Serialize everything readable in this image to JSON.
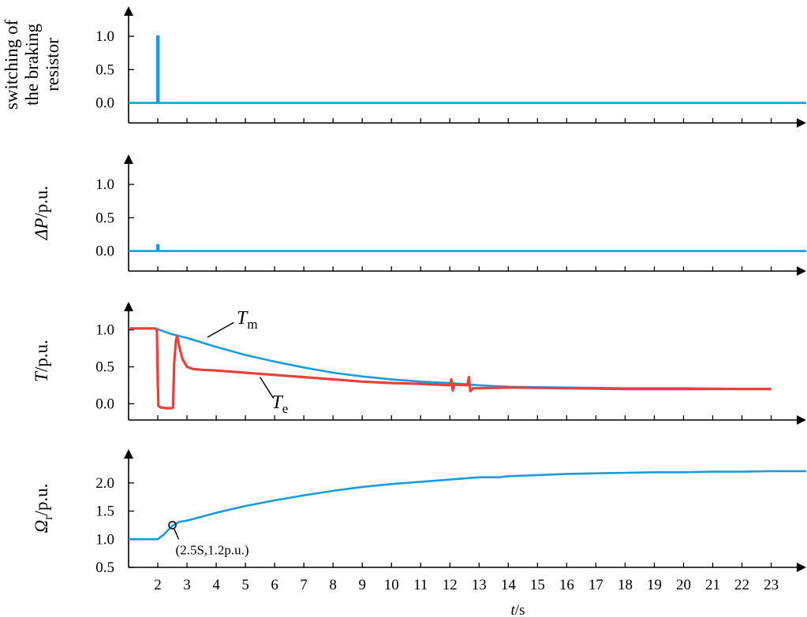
{
  "colors": {
    "blue": "#1a9be0",
    "red": "#e8403c",
    "axis": "#000000"
  },
  "chart_data": [
    {
      "type": "line",
      "title": "",
      "ylabel_lines": [
        "switching of",
        "the braking",
        "resistor"
      ],
      "yticks": [
        "1.0",
        "0.5",
        "0.0"
      ],
      "ylim": [
        -0.3,
        1.45
      ],
      "xlim": [
        1,
        24.2
      ],
      "series": [
        {
          "color": "blue",
          "points": [
            [
              1,
              0
            ],
            [
              1.98,
              0
            ],
            [
              1.98,
              1.0
            ],
            [
              2.03,
              1.0
            ],
            [
              2.03,
              0
            ],
            [
              24.2,
              0
            ]
          ]
        }
      ]
    },
    {
      "type": "line",
      "title": "",
      "ylabel_main": "ΔP",
      "ylabel_rest": "/p.u.",
      "yticks": [
        "1.0",
        "0.5",
        "0.0"
      ],
      "ylim": [
        -0.3,
        1.45
      ],
      "xlim": [
        1,
        24.2
      ],
      "series": [
        {
          "color": "blue",
          "points": [
            [
              1,
              0
            ],
            [
              1.98,
              0
            ],
            [
              1.98,
              0.09
            ],
            [
              2.03,
              0.09
            ],
            [
              2.03,
              0
            ],
            [
              24.2,
              0
            ]
          ]
        }
      ]
    },
    {
      "type": "line",
      "title": "",
      "ylabel_main": "T",
      "ylabel_rest": "/p.u.",
      "yticks": [
        "1.0",
        "0.5",
        "0.0"
      ],
      "ylim": [
        -0.22,
        1.38
      ],
      "xlim": [
        1,
        24.2
      ],
      "series": [
        {
          "name_main": "T",
          "name_sub": "m",
          "color": "blue",
          "points": [
            [
              1,
              1.02
            ],
            [
              1.9,
              1.02
            ],
            [
              2.0,
              1.01
            ],
            [
              2.2,
              0.98
            ],
            [
              2.5,
              0.94
            ],
            [
              3,
              0.89
            ],
            [
              3.5,
              0.83
            ],
            [
              4,
              0.77
            ],
            [
              5,
              0.66
            ],
            [
              6,
              0.57
            ],
            [
              7,
              0.49
            ],
            [
              8,
              0.42
            ],
            [
              9,
              0.37
            ],
            [
              10,
              0.33
            ],
            [
              11,
              0.3
            ],
            [
              12,
              0.28
            ],
            [
              13,
              0.25
            ],
            [
              14,
              0.23
            ],
            [
              16,
              0.22
            ],
            [
              18,
              0.21
            ],
            [
              20,
              0.21
            ],
            [
              23,
              0.2
            ]
          ]
        },
        {
          "name_main": "T",
          "name_sub": "e",
          "color": "red",
          "points": [
            [
              1,
              1.02
            ],
            [
              1.92,
              1.02
            ],
            [
              1.97,
              1.0
            ],
            [
              2.0,
              0.3
            ],
            [
              2.02,
              -0.03
            ],
            [
              2.1,
              -0.05
            ],
            [
              2.3,
              -0.06
            ],
            [
              2.5,
              -0.06
            ],
            [
              2.52,
              -0.05
            ],
            [
              2.56,
              0.55
            ],
            [
              2.62,
              0.85
            ],
            [
              2.66,
              0.92
            ],
            [
              2.72,
              0.8
            ],
            [
              2.85,
              0.6
            ],
            [
              3.0,
              0.5
            ],
            [
              3.2,
              0.47
            ],
            [
              3.5,
              0.46
            ],
            [
              4,
              0.45
            ],
            [
              5,
              0.42
            ],
            [
              6,
              0.39
            ],
            [
              7,
              0.36
            ],
            [
              8,
              0.33
            ],
            [
              9,
              0.3
            ],
            [
              10,
              0.28
            ],
            [
              11,
              0.27
            ],
            [
              12,
              0.25
            ],
            [
              12.05,
              0.33
            ],
            [
              12.1,
              0.18
            ],
            [
              12.15,
              0.26
            ],
            [
              12.6,
              0.25
            ],
            [
              12.65,
              0.36
            ],
            [
              12.7,
              0.17
            ],
            [
              12.8,
              0.21
            ],
            [
              13,
              0.21
            ],
            [
              14,
              0.22
            ],
            [
              16,
              0.21
            ],
            [
              18,
              0.2
            ],
            [
              20,
              0.2
            ],
            [
              22,
              0.2
            ],
            [
              23,
              0.2
            ]
          ]
        }
      ]
    },
    {
      "type": "line",
      "title": "",
      "ylabel_main": "Ω",
      "ylabel_sub": "r",
      "ylabel_rest": "/p.u.",
      "yticks": [
        "2.0",
        "1.5",
        "1.0",
        "0.5"
      ],
      "ylim": [
        0.5,
        2.6
      ],
      "xlim": [
        1,
        24.2
      ],
      "xlabel_main": "t",
      "xlabel_rest": "/s",
      "xticks": [
        "2",
        "3",
        "4",
        "5",
        "6",
        "7",
        "8",
        "9",
        "10",
        "11",
        "12",
        "13",
        "14",
        "15",
        "16",
        "17",
        "18",
        "19",
        "20",
        "21",
        "22",
        "23"
      ],
      "annotation": {
        "text": "(2.5S,1.2p.u.)",
        "x": 2.5,
        "y": 1.25
      },
      "series": [
        {
          "color": "blue",
          "points": [
            [
              1,
              1.0
            ],
            [
              2.0,
              1.0
            ],
            [
              2.2,
              1.08
            ],
            [
              2.5,
              1.24
            ],
            [
              2.75,
              1.31
            ],
            [
              3,
              1.33
            ],
            [
              3.5,
              1.4
            ],
            [
              4,
              1.47
            ],
            [
              5,
              1.59
            ],
            [
              6,
              1.69
            ],
            [
              7,
              1.78
            ],
            [
              8,
              1.86
            ],
            [
              9,
              1.93
            ],
            [
              10,
              1.98
            ],
            [
              11,
              2.02
            ],
            [
              12,
              2.06
            ],
            [
              13,
              2.1
            ],
            [
              13.7,
              2.1
            ],
            [
              14,
              2.12
            ],
            [
              15,
              2.14
            ],
            [
              16,
              2.16
            ],
            [
              17,
              2.17
            ],
            [
              18,
              2.18
            ],
            [
              19,
              2.19
            ],
            [
              20,
              2.19
            ],
            [
              21,
              2.2
            ],
            [
              22,
              2.2
            ],
            [
              23,
              2.21
            ],
            [
              24.2,
              2.21
            ]
          ]
        }
      ]
    }
  ]
}
